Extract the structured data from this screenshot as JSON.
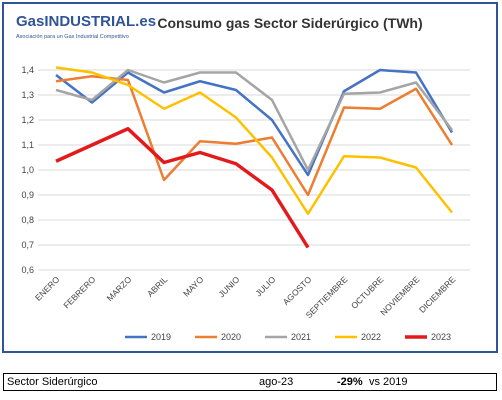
{
  "chart_data": {
    "type": "line",
    "title": "Consumo gas Sector Siderúrgico (TWh)",
    "logo": "GasINDUSTRIAL.es",
    "logo_subtitle": "Asociación para un Gas Industrial Competitivo",
    "categories": [
      "ENERO",
      "FEBRERO",
      "MARZO",
      "ABRIL",
      "MAYO",
      "JUNIO",
      "JULIO",
      "AGOSTO",
      "SEPTIEMBRE",
      "OCTUBRE",
      "NOVIEMBRE",
      "DICIEMBRE"
    ],
    "series": [
      {
        "name": "2019",
        "color": "#4472c4",
        "width": 2.5,
        "values": [
          1.38,
          1.27,
          1.39,
          1.31,
          1.355,
          1.32,
          1.2,
          0.98,
          1.315,
          1.4,
          1.39,
          1.15
        ]
      },
      {
        "name": "2020",
        "color": "#ed7d31",
        "width": 2.5,
        "values": [
          1.355,
          1.375,
          1.36,
          0.96,
          1.115,
          1.105,
          1.13,
          0.9,
          1.25,
          1.245,
          1.325,
          1.1
        ]
      },
      {
        "name": "2021",
        "color": "#a5a5a5",
        "width": 2.5,
        "values": [
          1.32,
          1.28,
          1.4,
          1.35,
          1.39,
          1.39,
          1.28,
          1.0,
          1.305,
          1.31,
          1.35,
          1.16
        ]
      },
      {
        "name": "2022",
        "color": "#ffc000",
        "width": 2.5,
        "values": [
          1.41,
          1.39,
          1.34,
          1.245,
          1.31,
          1.21,
          1.05,
          0.825,
          1.055,
          1.05,
          1.01,
          0.83
        ]
      },
      {
        "name": "2023",
        "color": "#e31a1c",
        "width": 3.5,
        "values": [
          1.035,
          1.1,
          1.165,
          1.03,
          1.07,
          1.025,
          0.92,
          0.69,
          null,
          null,
          null,
          null
        ]
      }
    ],
    "ylim": [
      0.6,
      1.4
    ],
    "yticks": [
      {
        "value": 0.6,
        "label": "0,6"
      },
      {
        "value": 0.7,
        "label": "0,7"
      },
      {
        "value": 0.8,
        "label": "0,8"
      },
      {
        "value": 0.9,
        "label": "0,9"
      },
      {
        "value": 1.0,
        "label": "1,0"
      },
      {
        "value": 1.1,
        "label": "1,1"
      },
      {
        "value": 1.2,
        "label": "1,2"
      },
      {
        "value": 1.3,
        "label": "1,3"
      },
      {
        "value": 1.4,
        "label": "1,4"
      }
    ],
    "grid": true,
    "legend": "bottom"
  },
  "footer": {
    "sector": "Sector Siderúrgico",
    "period": "ago-23",
    "change": "-29%",
    "reference": "vs 2019"
  }
}
